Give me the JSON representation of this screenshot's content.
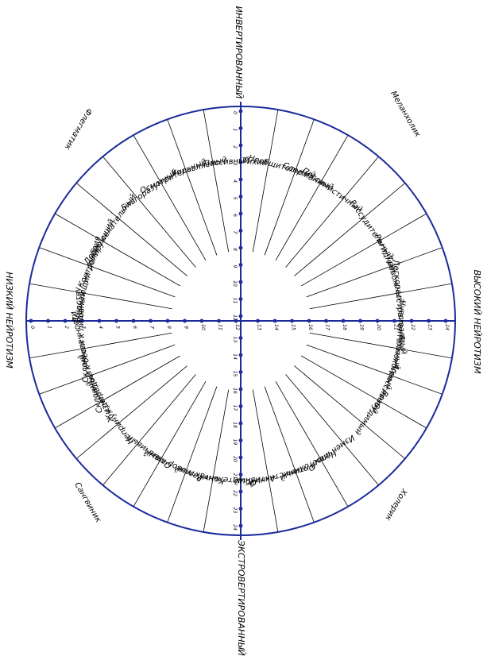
{
  "axes": {
    "top": "ИНВЕРТИРОВАННЫЙ",
    "bottom": "ЭКСТРОВЕРТИРОВАННЫЙ",
    "left": "НИЗКИЙ НЕЙРОТИЗМ",
    "right": "ВЫСОКИЙ НЕЙРОТИЗМ"
  },
  "temperaments": {
    "melancholic": "Меланхолик",
    "phlegmatic": "Флегматик",
    "sanguine": "Сангвиник",
    "choleric": "Холерик"
  },
  "traits": {
    "melancholic": [
      "Тихий",
      "Необщительный",
      "Сдержанный",
      "Пессимистичный",
      "Рассудительный",
      "Ригидный",
      "Тревожный",
      "Легкорасстраиваемый"
    ],
    "choleric": [
      "Чувствительный",
      "Беспокойный",
      "Агрессивный",
      "Возбудимый",
      "Изменчивый",
      "Непостоянный",
      "Оптимистичный",
      "Активный"
    ],
    "sanguine": [
      "Общительный",
      "Контактный",
      "Разговорчивый",
      "Отзывчивый",
      "Непринужденный",
      "Жизнерадостный",
      "Склонный к беспечности",
      "Склонный к лидерству"
    ],
    "phlegmatic": [
      "Ровный",
      "Внушающий доверия",
      "Контролирующий",
      "Доброжелательный",
      "Благоразумный",
      "Осмотрительный",
      "Управляемый",
      "Пассивный"
    ]
  },
  "scales": {
    "vertical_up": [
      "0",
      "1",
      "2",
      "3",
      "4",
      "5",
      "6",
      "7",
      "8",
      "9",
      "10",
      "11",
      "12"
    ],
    "vertical_down": [
      "13",
      "14",
      "15",
      "16",
      "17",
      "18",
      "19",
      "20",
      "21",
      "22",
      "23",
      "24"
    ],
    "horizontal_left": [
      "0",
      "1",
      "2",
      "3",
      "4",
      "5",
      "6",
      "7",
      "8",
      "9",
      "10",
      "11",
      "12"
    ],
    "horizontal_right": [
      "13",
      "14",
      "15",
      "16",
      "17",
      "18",
      "19",
      "20",
      "21",
      "22",
      "23",
      "24"
    ]
  },
  "colors": {
    "circle": "#1a2a9a",
    "axis": "#1a2a9a",
    "spokes": "#000000"
  }
}
